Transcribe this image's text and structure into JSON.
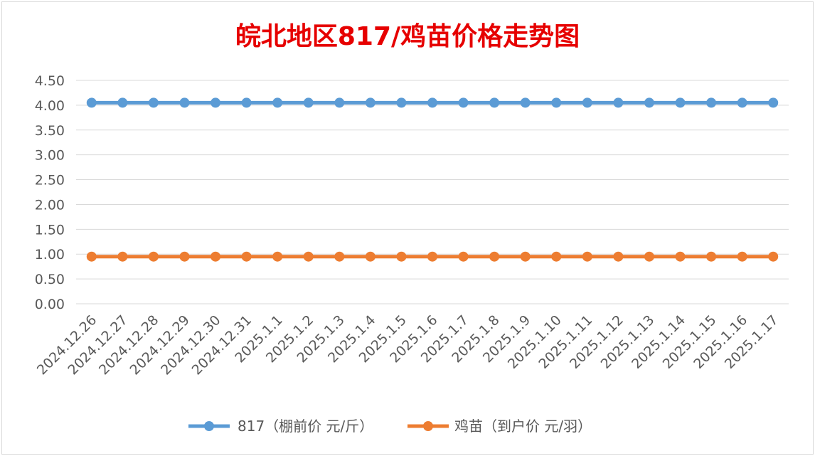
{
  "chart_data": {
    "type": "line",
    "title": "皖北地区817/鸡苗价格走势图",
    "xlabel": "",
    "ylabel": "",
    "ylim": [
      0,
      4.5
    ],
    "yticks": [
      "0.00",
      "0.50",
      "1.00",
      "1.50",
      "2.00",
      "2.50",
      "3.00",
      "3.50",
      "4.00",
      "4.50"
    ],
    "grid": true,
    "legend_position": "bottom",
    "categories": [
      "2024.12.26",
      "2024.12.27",
      "2024.12.28",
      "2024.12.29",
      "2024.12.30",
      "2024.12.31",
      "2025.1.1",
      "2025.1.2",
      "2025.1.3",
      "2025.1.4",
      "2025.1.5",
      "2025.1.6",
      "2025.1.7",
      "2025.1.8",
      "2025.1.9",
      "2025.1.10",
      "2025.1.11",
      "2025.1.12",
      "2025.1.13",
      "2025.1.14",
      "2025.1.15",
      "2025.1.16",
      "2025.1.17"
    ],
    "series": [
      {
        "name": "817（棚前价 元/斤）",
        "color": "#5b9bd5",
        "values": [
          4.05,
          4.05,
          4.05,
          4.05,
          4.05,
          4.05,
          4.05,
          4.05,
          4.05,
          4.05,
          4.05,
          4.05,
          4.05,
          4.05,
          4.05,
          4.05,
          4.05,
          4.05,
          4.05,
          4.05,
          4.05,
          4.05,
          4.05
        ]
      },
      {
        "name": "鸡苗（到户价 元/羽）",
        "color": "#ed7d31",
        "values": [
          0.95,
          0.95,
          0.95,
          0.95,
          0.95,
          0.95,
          0.95,
          0.95,
          0.95,
          0.95,
          0.95,
          0.95,
          0.95,
          0.95,
          0.95,
          0.95,
          0.95,
          0.95,
          0.95,
          0.95,
          0.95,
          0.95,
          0.95
        ]
      }
    ]
  }
}
